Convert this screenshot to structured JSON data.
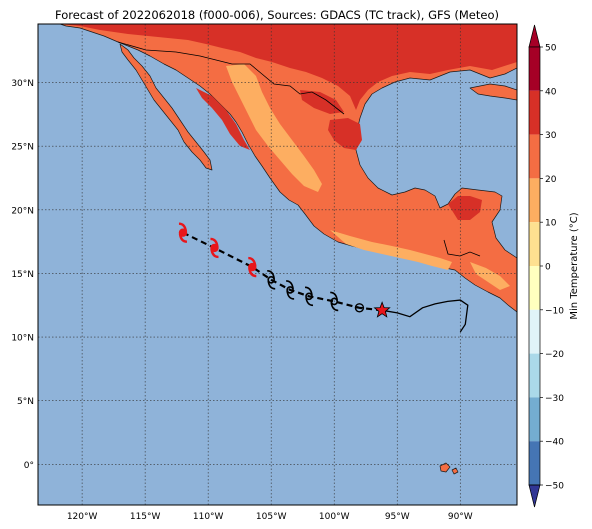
{
  "title": "Forecast of 2022062018 (f000-006), Sources: GDACS (TC track), GFS (Meteo)",
  "map": {
    "ocean_color": "#8fb3d9",
    "lon_range": [
      -123.5,
      -85.5
    ],
    "lat_range": [
      -3.2,
      34.6
    ],
    "lat_ticks": [
      {
        "value": 30,
        "label": "30°N"
      },
      {
        "value": 25,
        "label": "25°N"
      },
      {
        "value": 20,
        "label": "20°N"
      },
      {
        "value": 15,
        "label": "15°N"
      },
      {
        "value": 10,
        "label": "10°N"
      },
      {
        "value": 5,
        "label": "5°N"
      },
      {
        "value": 0,
        "label": "0°"
      }
    ],
    "lon_ticks": [
      {
        "value": -120,
        "label": "120°W"
      },
      {
        "value": -115,
        "label": "115°W"
      },
      {
        "value": -110,
        "label": "110°W"
      },
      {
        "value": -105,
        "label": "105°W"
      },
      {
        "value": -100,
        "label": "100°W"
      },
      {
        "value": -95,
        "label": "95°W"
      },
      {
        "value": -90,
        "label": "90°W"
      }
    ],
    "gridlines": true
  },
  "colorbar": {
    "label": "Min Temperature (°C)",
    "levels": [
      50,
      40,
      30,
      20,
      10,
      0,
      -10,
      -20,
      -30,
      -40,
      -50
    ],
    "tick_labels": [
      "50",
      "40",
      "30",
      "20",
      "10",
      "0",
      "−10",
      "−20",
      "−30",
      "−40",
      "−50"
    ],
    "colors_top_down": [
      "#a50026",
      "#d73027",
      "#f46d43",
      "#fdae61",
      "#fee090",
      "#ffffbf",
      "#e0f3f8",
      "#abd9e9",
      "#74add1",
      "#4575b4",
      "#313695"
    ],
    "extend": "both"
  },
  "track": {
    "points": [
      {
        "lon": -112,
        "lat": 18.2,
        "symbol": "hurricane",
        "color": "#e8161b"
      },
      {
        "lon": -109.5,
        "lat": 17.0,
        "symbol": "hurricane",
        "color": "#e8161b"
      },
      {
        "lon": -106.5,
        "lat": 15.5,
        "symbol": "hurricane",
        "color": "#e8161b"
      },
      {
        "lon": -105.0,
        "lat": 14.5,
        "symbol": "storm",
        "color": "#000000"
      },
      {
        "lon": -103.5,
        "lat": 13.7,
        "symbol": "storm",
        "color": "#000000"
      },
      {
        "lon": -102.0,
        "lat": 13.2,
        "symbol": "storm",
        "color": "#000000"
      },
      {
        "lon": -100.0,
        "lat": 12.8,
        "symbol": "storm",
        "color": "#000000"
      },
      {
        "lon": -98.0,
        "lat": 12.3,
        "symbol": "depression",
        "color": "#000000"
      },
      {
        "lon": -96.2,
        "lat": 12.1,
        "symbol": "origin-star",
        "color": "#e8161b"
      }
    ],
    "past_track": [
      [
        -96.2,
        12.1
      ],
      [
        -95.0,
        11.9
      ],
      [
        -94.0,
        11.6
      ],
      [
        -93.0,
        12.3
      ],
      [
        -92.0,
        12.6
      ],
      [
        -91.0,
        12.8
      ],
      [
        -90.0,
        12.9
      ],
      [
        -89.4,
        12.5
      ],
      [
        -89.6,
        11.0
      ],
      [
        -90.0,
        10.4
      ]
    ]
  }
}
